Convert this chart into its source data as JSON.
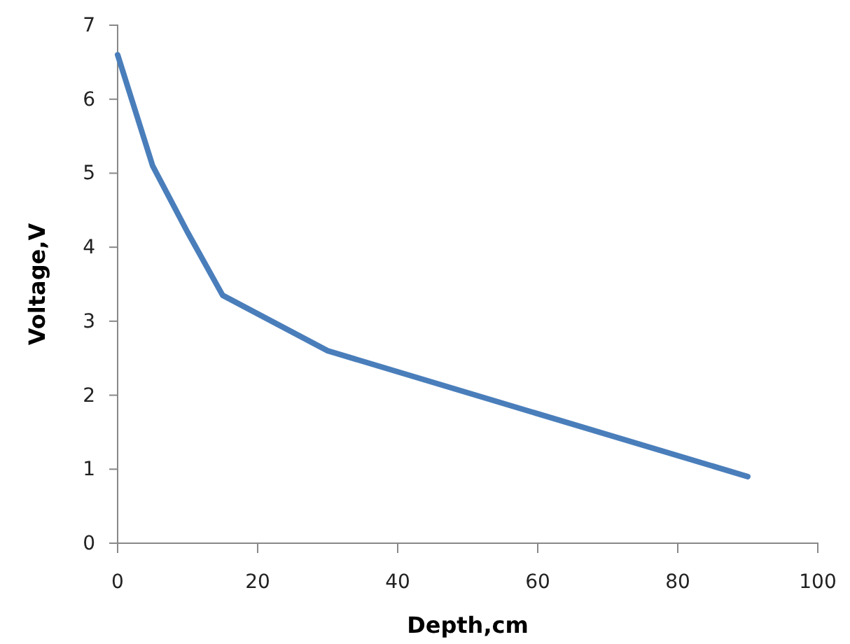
{
  "chart_data": {
    "type": "line",
    "xlabel": "Depth,cm",
    "ylabel": "Voltage,V",
    "x": [
      0,
      5,
      10,
      15,
      30,
      90
    ],
    "series": [
      {
        "color": "#4a7ebb",
        "values": [
          6.6,
          5.1,
          4.2,
          3.35,
          2.6,
          0.9
        ]
      }
    ],
    "xlim": [
      0,
      100
    ],
    "xticks": [
      0,
      20,
      40,
      60,
      80,
      100
    ],
    "ylim": [
      0,
      7
    ],
    "yticks": [
      0,
      1,
      2,
      3,
      4,
      5,
      6,
      7
    ],
    "marker": "none",
    "line_style": "solid"
  }
}
